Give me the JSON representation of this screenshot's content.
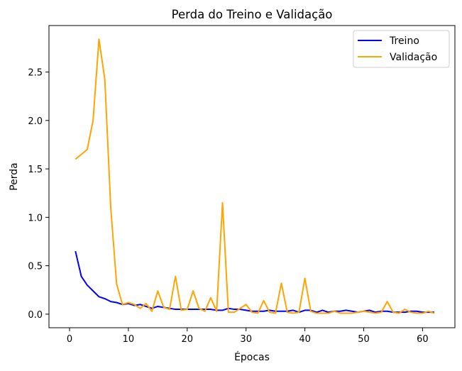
{
  "chart_data": {
    "type": "line",
    "title": "Perda do Treino e Validação",
    "xlabel": "Épocas",
    "ylabel": "Perda",
    "xlim": [
      -3.5,
      65.5
    ],
    "ylim": [
      -0.14,
      2.98
    ],
    "xticks": [
      0,
      10,
      20,
      30,
      40,
      50,
      60
    ],
    "yticks": [
      0.0,
      0.5,
      1.0,
      1.5,
      2.0,
      2.5
    ],
    "ytick_labels": [
      "0.0",
      "0.5",
      "1.0",
      "1.5",
      "2.0",
      "2.5"
    ],
    "grid": false,
    "legend_position": "top-right",
    "series": [
      {
        "name": "Treino",
        "color": "#0000ff",
        "x": [
          1,
          2,
          3,
          4,
          5,
          6,
          7,
          8,
          9,
          10,
          11,
          12,
          13,
          14,
          15,
          16,
          17,
          18,
          19,
          20,
          21,
          22,
          23,
          24,
          25,
          26,
          27,
          28,
          29,
          30,
          31,
          32,
          33,
          34,
          35,
          36,
          37,
          38,
          39,
          40,
          41,
          42,
          43,
          44,
          45,
          46,
          47,
          48,
          49,
          50,
          51,
          52,
          53,
          54,
          55,
          56,
          57,
          58,
          59,
          60,
          61,
          62
        ],
        "y": [
          0.65,
          0.39,
          0.3,
          0.24,
          0.18,
          0.16,
          0.13,
          0.12,
          0.1,
          0.11,
          0.09,
          0.1,
          0.08,
          0.06,
          0.08,
          0.07,
          0.06,
          0.05,
          0.05,
          0.05,
          0.05,
          0.05,
          0.05,
          0.05,
          0.04,
          0.04,
          0.06,
          0.05,
          0.05,
          0.04,
          0.03,
          0.03,
          0.03,
          0.04,
          0.03,
          0.03,
          0.03,
          0.04,
          0.02,
          0.04,
          0.04,
          0.02,
          0.04,
          0.02,
          0.03,
          0.03,
          0.04,
          0.03,
          0.02,
          0.03,
          0.04,
          0.02,
          0.03,
          0.03,
          0.02,
          0.02,
          0.02,
          0.03,
          0.03,
          0.02,
          0.02,
          0.02
        ]
      },
      {
        "name": "Validação",
        "color": "#ffa500",
        "x": [
          1,
          2,
          3,
          4,
          5,
          6,
          7,
          8,
          9,
          10,
          11,
          12,
          13,
          14,
          15,
          16,
          17,
          18,
          19,
          20,
          21,
          22,
          23,
          24,
          25,
          26,
          27,
          28,
          29,
          30,
          31,
          32,
          33,
          34,
          35,
          36,
          37,
          38,
          39,
          40,
          41,
          42,
          43,
          44,
          45,
          46,
          47,
          48,
          49,
          50,
          51,
          52,
          53,
          54,
          55,
          56,
          57,
          58,
          59,
          60,
          61,
          62
        ],
        "y": [
          1.6,
          1.65,
          1.7,
          2.0,
          2.84,
          2.42,
          1.1,
          0.31,
          0.1,
          0.12,
          0.1,
          0.06,
          0.11,
          0.03,
          0.24,
          0.07,
          0.05,
          0.39,
          0.04,
          0.05,
          0.24,
          0.06,
          0.03,
          0.17,
          0.03,
          1.15,
          0.02,
          0.02,
          0.06,
          0.1,
          0.02,
          0.01,
          0.14,
          0.02,
          0.01,
          0.32,
          0.02,
          0.01,
          0.02,
          0.37,
          0.03,
          0.01,
          0.01,
          0.01,
          0.03,
          0.01,
          0.01,
          0.01,
          0.02,
          0.03,
          0.02,
          0.01,
          0.02,
          0.13,
          0.02,
          0.01,
          0.05,
          0.02,
          0.01,
          0.01,
          0.03,
          0.01
        ]
      }
    ]
  }
}
